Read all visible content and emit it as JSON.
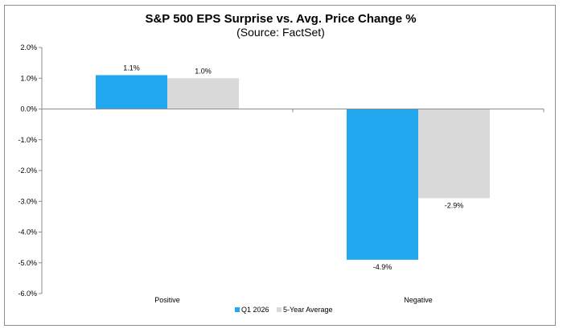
{
  "chart_data": {
    "type": "bar",
    "title": "S&P 500 EPS Surprise vs. Avg. Price Change %",
    "subtitle": "(Source: FactSet)",
    "categories": [
      "Positive",
      "Negative"
    ],
    "series": [
      {
        "name": "Q1 2026",
        "values": [
          1.1,
          -4.9
        ],
        "labels": [
          "1.1%",
          "-4.9%"
        ],
        "color": "#21a8ef"
      },
      {
        "name": "5-Year Average",
        "values": [
          1.0,
          -2.9
        ],
        "labels": [
          "1.0%",
          "-2.9%"
        ],
        "color": "#d9d9d9"
      }
    ],
    "ylim": [
      -6.0,
      2.0
    ],
    "yticks": [
      2.0,
      1.0,
      0.0,
      -1.0,
      -2.0,
      -3.0,
      -4.0,
      -5.0,
      -6.0
    ],
    "ytick_labels": [
      "2.0%",
      "1.0%",
      "0.0%",
      "-1.0%",
      "-2.0%",
      "-3.0%",
      "-4.0%",
      "-5.0%",
      "-6.0%"
    ],
    "xlabel": "",
    "ylabel": "",
    "grid": false,
    "legend": "bottom"
  }
}
